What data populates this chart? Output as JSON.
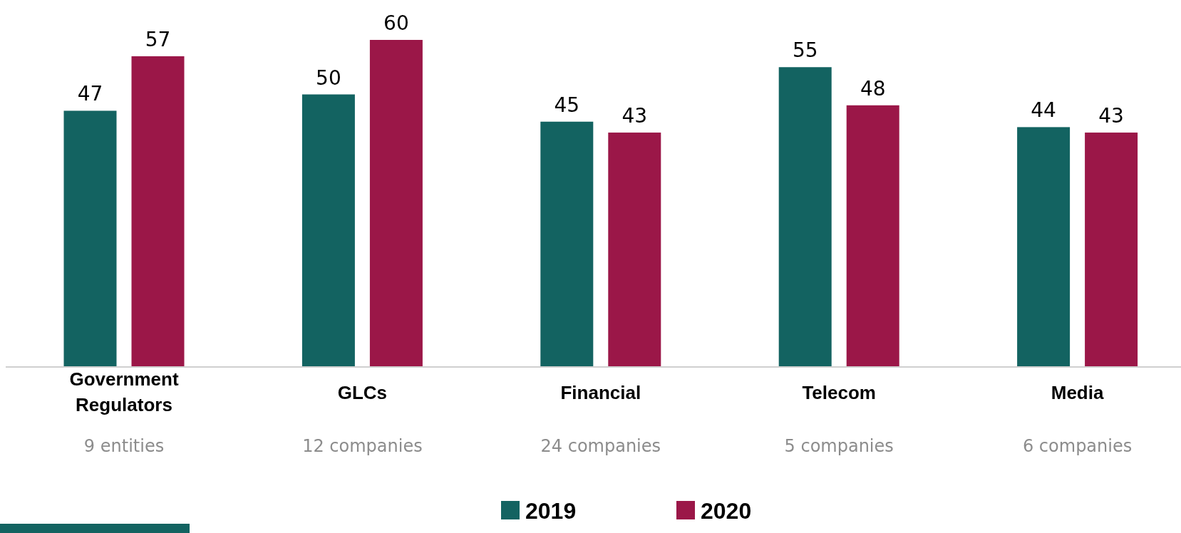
{
  "chart_data": {
    "type": "bar",
    "categories": [
      "Government Regulators",
      "GLCs",
      "Financial",
      "Telecom",
      "Media"
    ],
    "series": [
      {
        "name": "2019",
        "color": "#136361",
        "values": [
          47,
          50,
          45,
          55,
          44
        ]
      },
      {
        "name": "2020",
        "color": "#9b1748",
        "values": [
          57,
          60,
          43,
          48,
          43
        ]
      }
    ],
    "data_labels": true,
    "legend": "bottom",
    "annotations": [
      "9 entities",
      "12 companies",
      "24 companies",
      "5 companies",
      "6 companies"
    ]
  }
}
